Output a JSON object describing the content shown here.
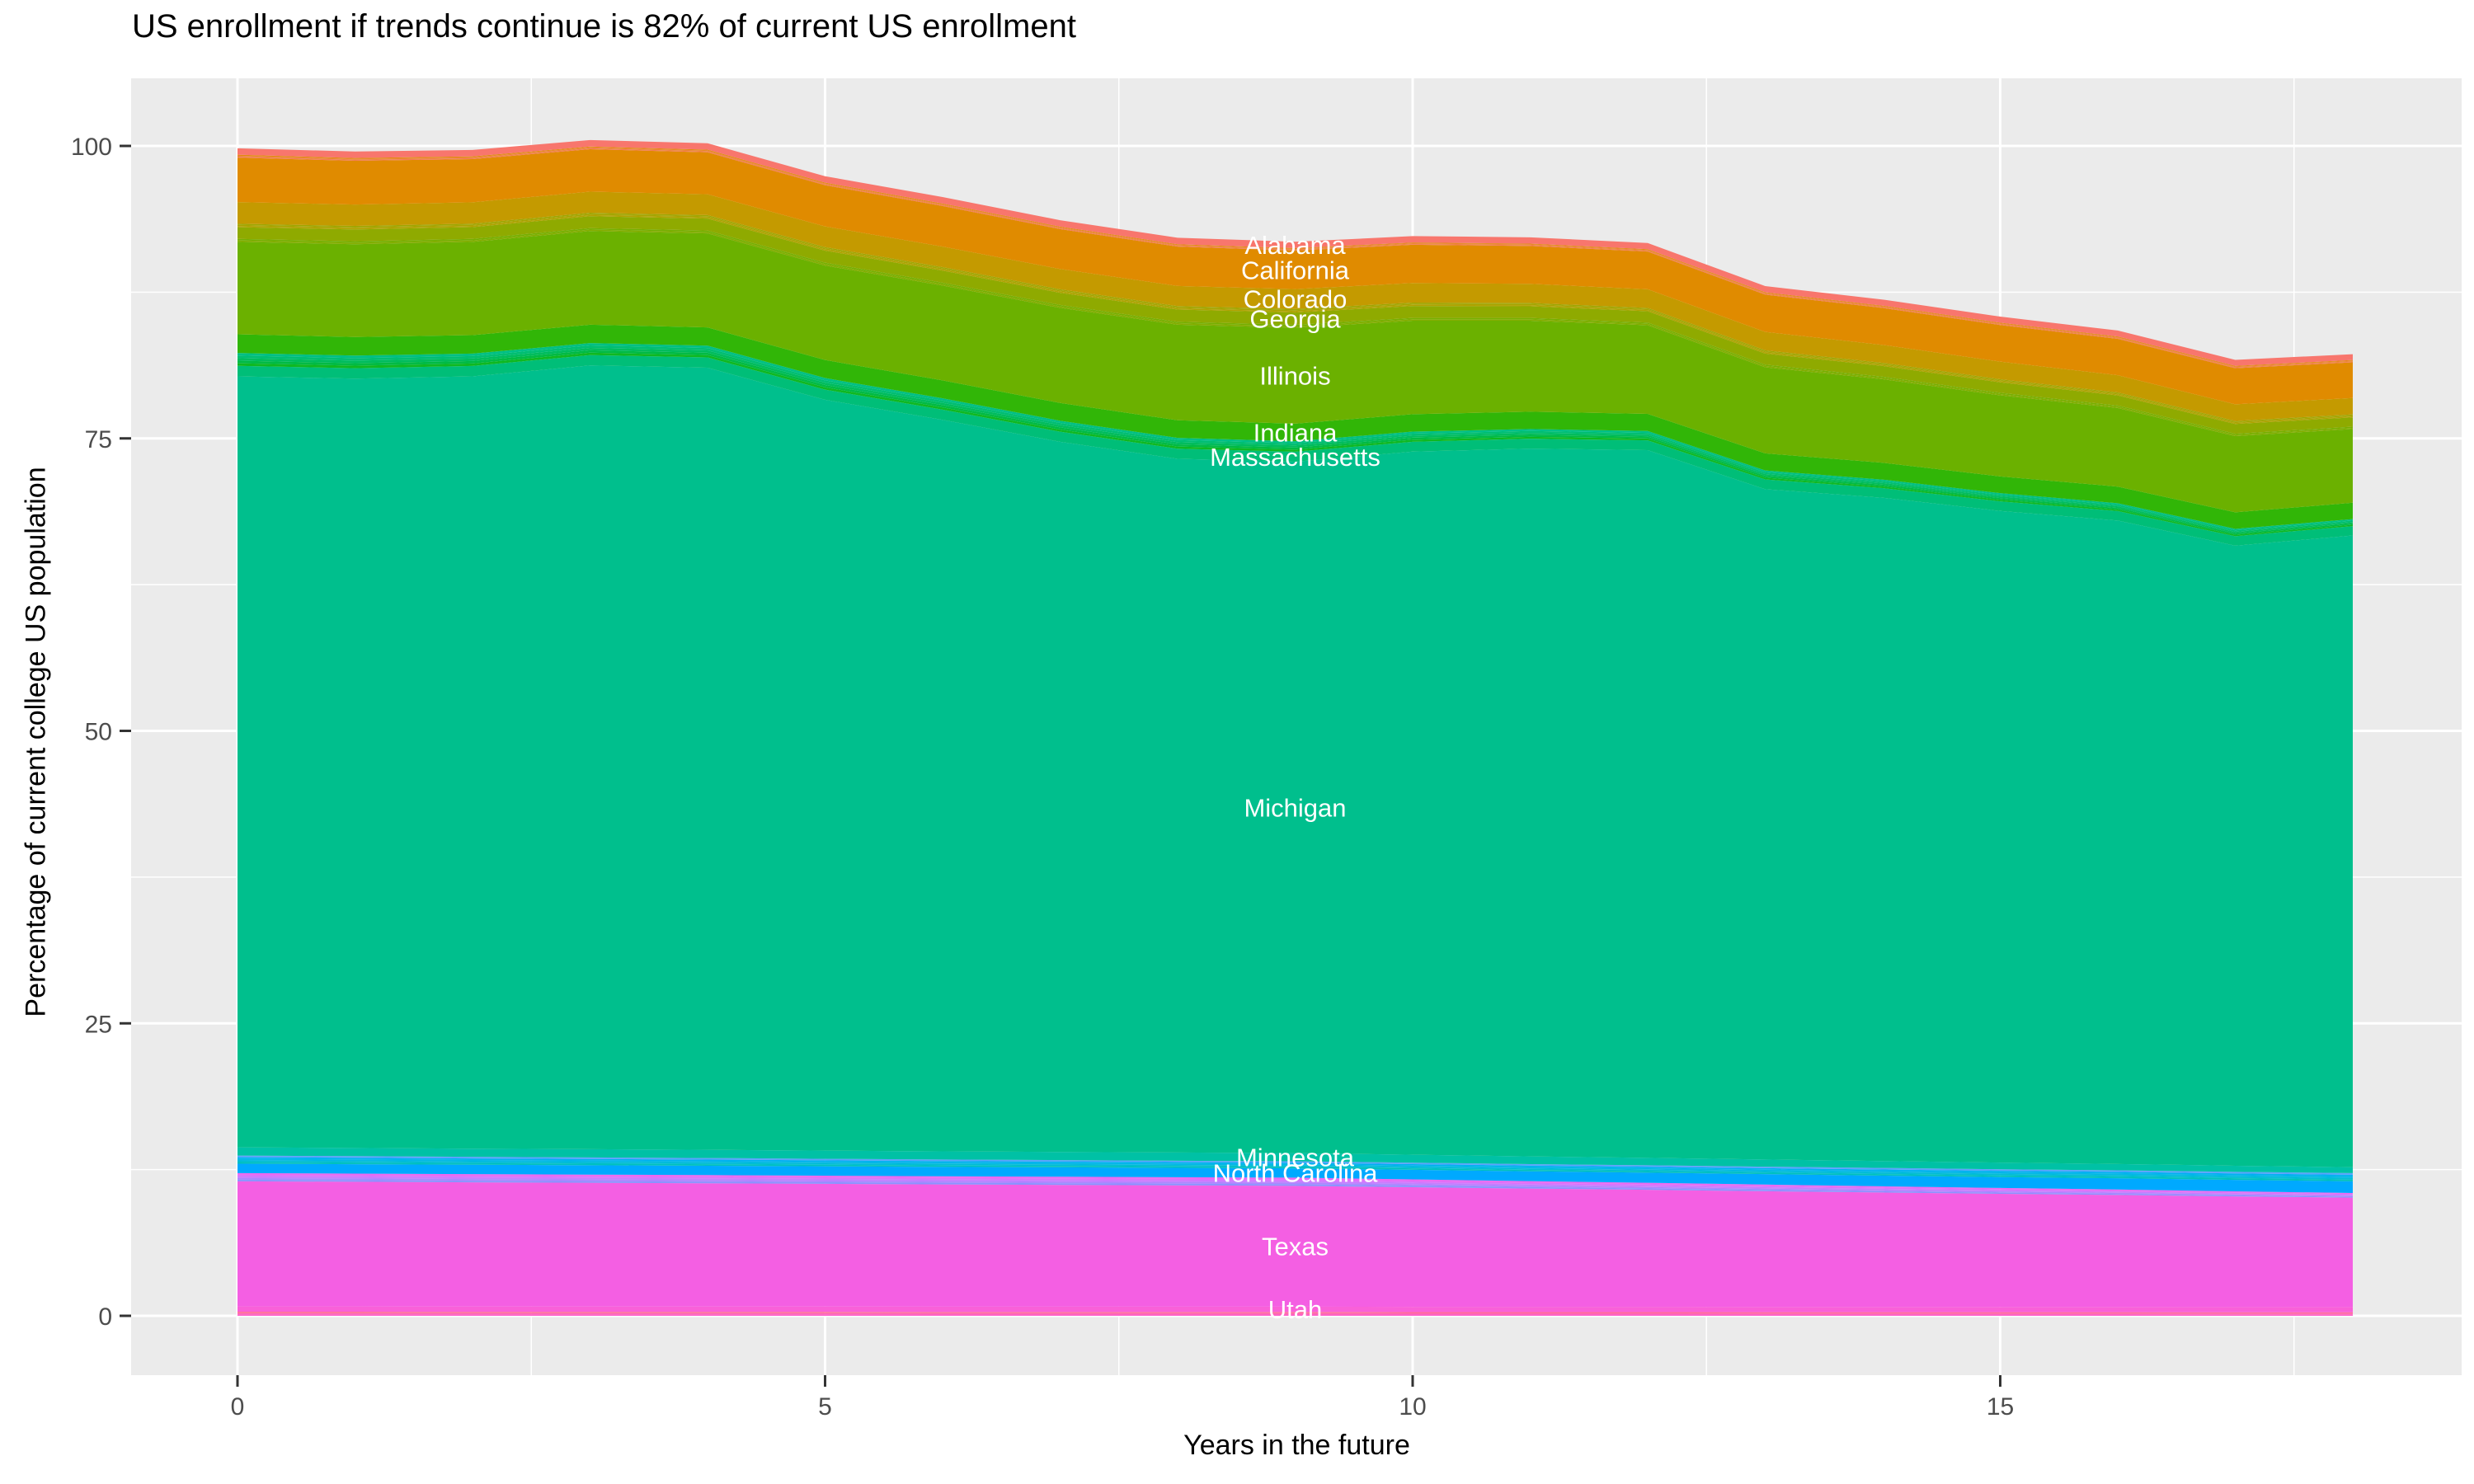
{
  "colors": {
    "panel_background": "#EBEBEB",
    "gridline": "#FFFFFF",
    "tick_mark": "#333333",
    "tick_label": "#4D4D4D",
    "band_label_text": "#FFFFFF",
    "title_text": "#000000"
  },
  "chart_data": {
    "type": "area",
    "stacked": true,
    "title": "US enrollment if trends continue is 82% of current US enrollment",
    "xlabel": "Years in the future",
    "ylabel": "Percentage of current college US population",
    "x": [
      0,
      1,
      2,
      3,
      4,
      5,
      6,
      7,
      8,
      9,
      10,
      11,
      12,
      13,
      14,
      15,
      16,
      17,
      18
    ],
    "x_ticks": [
      0,
      5,
      10,
      15
    ],
    "x_minor_ticks": [
      2.5,
      7.5,
      12.5,
      17.5
    ],
    "y_ticks": [
      0,
      25,
      50,
      75,
      100
    ],
    "y_minor_ticks": [
      12.5,
      37.5,
      62.5,
      87.5
    ],
    "xlim": [
      0,
      18
    ],
    "ylim": [
      0,
      100.7
    ],
    "label_year": 9,
    "legend": "none",
    "grid": "on",
    "series": [
      {
        "name": "unlabeled-1",
        "labeled": false,
        "colors": [
          "#FD62CC",
          "#FF66B3",
          "#FF6F97"
        ],
        "values": [
          0.35,
          0.35,
          0.34,
          0.34,
          0.34,
          0.34,
          0.33,
          0.33,
          0.33,
          0.33,
          0.32,
          0.32,
          0.32,
          0.31,
          0.31,
          0.31,
          0.31,
          0.3,
          0.3
        ]
      },
      {
        "name": "Utah",
        "labeled": true,
        "color": "#F961D8",
        "values": [
          0.45,
          0.45,
          0.45,
          0.45,
          0.45,
          0.45,
          0.45,
          0.45,
          0.45,
          0.45,
          0.45,
          0.45,
          0.45,
          0.45,
          0.45,
          0.45,
          0.45,
          0.45,
          0.45
        ]
      },
      {
        "name": "Texas",
        "labeled": true,
        "color": "#F45FE3",
        "values": [
          10.7,
          10.66,
          10.62,
          10.58,
          10.54,
          10.49,
          10.45,
          10.41,
          10.37,
          10.33,
          10.22,
          10.11,
          10.0,
          9.89,
          9.78,
          9.67,
          9.57,
          9.46,
          9.35
        ]
      },
      {
        "name": "unlabeled-2",
        "labeled": false,
        "colors": [
          "#8A92FF",
          "#AC85FF",
          "#C77CFF",
          "#DC71FA",
          "#EC67F0"
        ],
        "values": [
          0.7,
          0.7,
          0.7,
          0.7,
          0.7,
          0.7,
          0.7,
          0.7,
          0.7,
          0.7,
          0.67,
          0.63,
          0.6,
          0.57,
          0.53,
          0.5,
          0.47,
          0.43,
          0.4
        ]
      },
      {
        "name": "North Carolina",
        "labeled": true,
        "color": "#00A9FF",
        "values": [
          0.8,
          0.8,
          0.8,
          0.8,
          0.8,
          0.8,
          0.8,
          0.8,
          0.8,
          0.8,
          0.82,
          0.84,
          0.87,
          0.89,
          0.91,
          0.93,
          0.96,
          0.98,
          1.0
        ]
      },
      {
        "name": "unlabeled-3",
        "labeled": false,
        "colors": [
          "#00C0BC",
          "#00BDD2",
          "#00B8E5",
          "#00B0F2",
          "#5AA2FB"
        ],
        "values": [
          0.7,
          0.69,
          0.68,
          0.67,
          0.66,
          0.64,
          0.63,
          0.62,
          0.61,
          0.6,
          0.61,
          0.62,
          0.63,
          0.64,
          0.66,
          0.67,
          0.68,
          0.69,
          0.7
        ]
      },
      {
        "name": "Minnesota",
        "labeled": true,
        "color": "#00C1A5",
        "values": [
          0.7,
          0.7,
          0.7,
          0.7,
          0.7,
          0.7,
          0.7,
          0.7,
          0.7,
          0.7,
          0.68,
          0.66,
          0.63,
          0.61,
          0.59,
          0.57,
          0.54,
          0.52,
          0.5
        ]
      },
      {
        "name": "Michigan",
        "labeled": true,
        "color": "#00BF8D",
        "values": [
          65.9,
          65.76,
          66.01,
          67.0,
          66.85,
          64.18,
          62.53,
          60.7,
          59.3,
          59.1,
          60.1,
          60.5,
          60.5,
          57.3,
          56.7,
          55.7,
          55.0,
          53.0,
          54.0
        ]
      },
      {
        "name": "Massachusetts",
        "labeled": true,
        "color": "#00BE78",
        "values": [
          0.9,
          0.89,
          0.89,
          0.88,
          0.88,
          0.87,
          0.87,
          0.86,
          0.86,
          0.85,
          0.84,
          0.84,
          0.83,
          0.83,
          0.82,
          0.82,
          0.81,
          0.81,
          0.8
        ]
      },
      {
        "name": "unlabeled-4",
        "labeled": false,
        "colors": [
          "#0FB821",
          "#00BA44",
          "#00BC5D",
          "#00BE72",
          "#00BF85"
        ],
        "values": [
          1.1,
          1.08,
          1.06,
          1.03,
          1.01,
          0.99,
          0.97,
          0.94,
          0.92,
          0.9,
          0.87,
          0.83,
          0.8,
          0.77,
          0.73,
          0.7,
          0.67,
          0.63,
          0.6
        ]
      },
      {
        "name": "Indiana",
        "labeled": true,
        "color": "#31B607",
        "values": [
          1.6,
          1.59,
          1.58,
          1.57,
          1.56,
          1.54,
          1.53,
          1.52,
          1.51,
          1.5,
          1.49,
          1.48,
          1.47,
          1.46,
          1.44,
          1.43,
          1.42,
          1.41,
          1.4
        ]
      },
      {
        "name": "Illinois",
        "labeled": true,
        "color": "#6BB100",
        "values": [
          7.9,
          7.93,
          7.97,
          8.0,
          8.03,
          8.07,
          8.1,
          8.13,
          8.17,
          8.2,
          7.99,
          7.78,
          7.57,
          7.36,
          7.14,
          6.93,
          6.72,
          6.51,
          6.3
        ]
      },
      {
        "name": "unlabeled-5",
        "labeled": false,
        "colors": [
          "#84AD00",
          "#76AF00"
        ],
        "values": [
          0.25,
          0.25,
          0.25,
          0.25,
          0.25,
          0.25,
          0.25,
          0.25,
          0.25,
          0.25,
          0.24,
          0.24,
          0.23,
          0.23,
          0.22,
          0.22,
          0.21,
          0.21,
          0.2
        ]
      },
      {
        "name": "Georgia",
        "labeled": true,
        "color": "#8FAA00",
        "values": [
          1.0,
          1.01,
          1.01,
          1.02,
          1.02,
          1.03,
          1.03,
          1.04,
          1.04,
          1.05,
          1.02,
          0.99,
          0.97,
          0.94,
          0.91,
          0.89,
          0.86,
          0.83,
          0.8
        ]
      },
      {
        "name": "unlabeled-6",
        "labeled": false,
        "colors": [
          "#B1A200",
          "#A8A400",
          "#9FA600"
        ],
        "values": [
          0.3,
          0.3,
          0.3,
          0.3,
          0.3,
          0.3,
          0.3,
          0.3,
          0.3,
          0.3,
          0.29,
          0.29,
          0.28,
          0.28,
          0.27,
          0.27,
          0.26,
          0.26,
          0.25
        ]
      },
      {
        "name": "Colorado",
        "labeled": true,
        "color": "#C49A00",
        "values": [
          1.85,
          1.83,
          1.82,
          1.8,
          1.78,
          1.77,
          1.75,
          1.73,
          1.72,
          1.7,
          1.67,
          1.63,
          1.6,
          1.57,
          1.53,
          1.5,
          1.47,
          1.43,
          1.4
        ]
      },
      {
        "name": "California",
        "labeled": true,
        "color": "#E08B00",
        "values": [
          3.8,
          3.74,
          3.69,
          3.63,
          3.58,
          3.52,
          3.47,
          3.41,
          3.36,
          3.3,
          3.27,
          3.24,
          3.22,
          3.19,
          3.16,
          3.13,
          3.11,
          3.08,
          3.05
        ]
      },
      {
        "name": "unlabeled-7",
        "labeled": false,
        "colors": [
          "#F37D52",
          "#EC8437",
          "#E38A11"
        ],
        "values": [
          0.25,
          0.24,
          0.24,
          0.23,
          0.23,
          0.22,
          0.22,
          0.21,
          0.21,
          0.2,
          0.2,
          0.2,
          0.2,
          0.2,
          0.2,
          0.2,
          0.2,
          0.2,
          0.2
        ]
      },
      {
        "name": "Alabama",
        "labeled": true,
        "color": "#F8766D",
        "values": [
          0.55,
          0.55,
          0.55,
          0.55,
          0.55,
          0.55,
          0.55,
          0.55,
          0.55,
          0.55,
          0.54,
          0.54,
          0.53,
          0.53,
          0.52,
          0.52,
          0.51,
          0.51,
          0.5
        ]
      }
    ]
  }
}
